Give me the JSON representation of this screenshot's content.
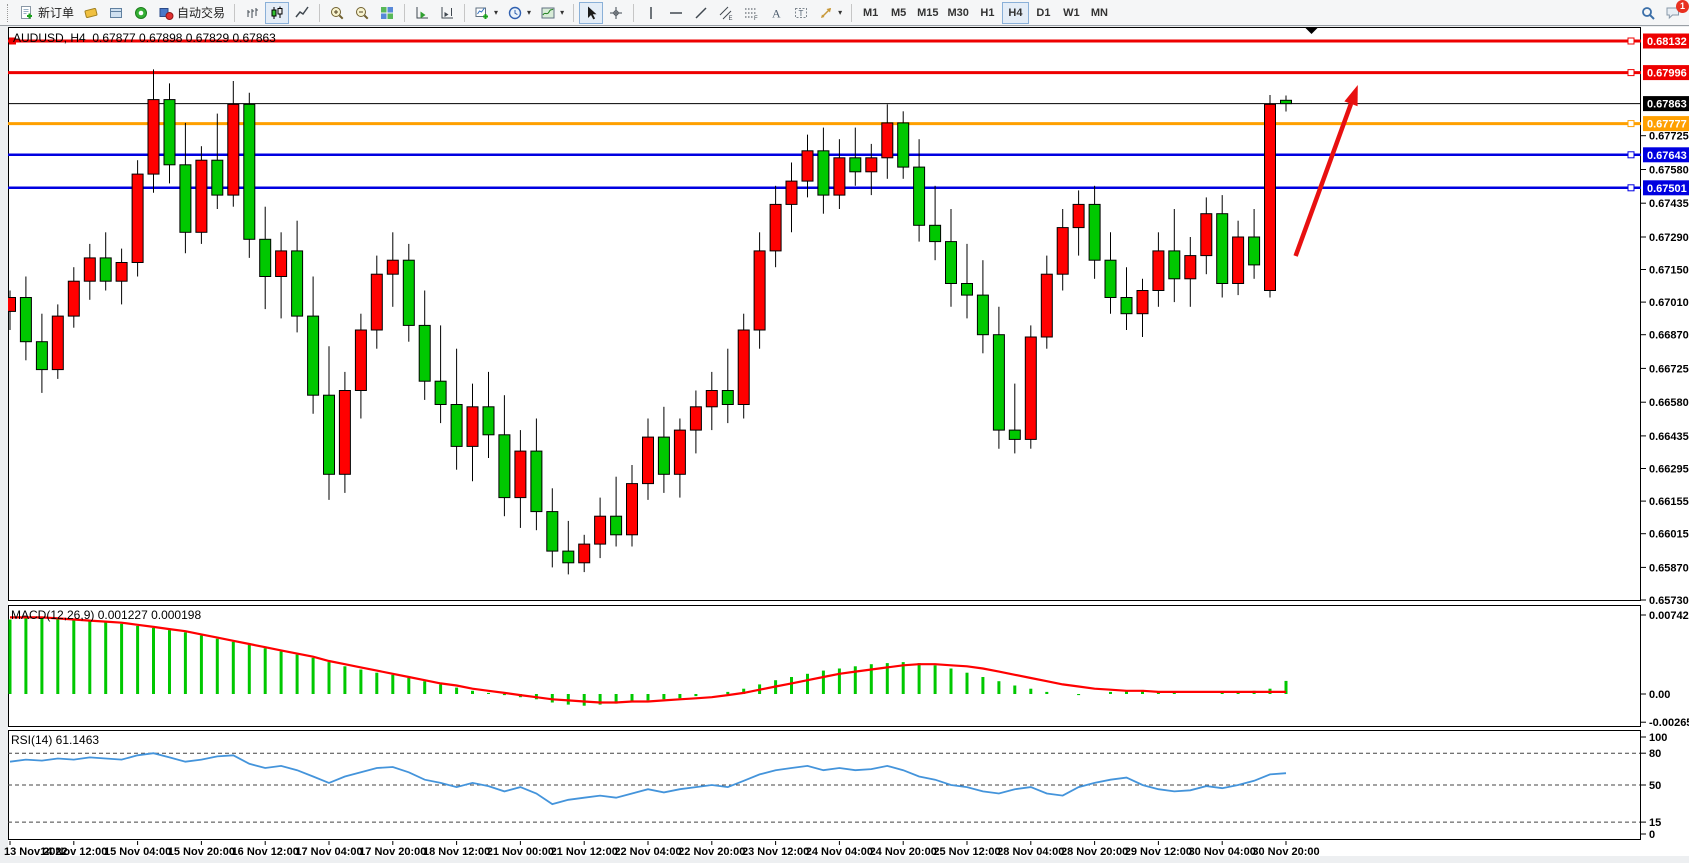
{
  "toolbar": {
    "groups": [
      {
        "buttons": [
          {
            "name": "new-order",
            "icon": "new-order-icon",
            "label": "新订单"
          },
          {
            "name": "quotes",
            "icon": "quotes-icon"
          },
          {
            "name": "data-window",
            "icon": "data-window-icon"
          },
          {
            "name": "navigator",
            "icon": "navigator-icon"
          },
          {
            "name": "auto-trading",
            "icon": "auto-trading-icon",
            "label": "自动交易"
          }
        ]
      },
      {
        "buttons": [
          {
            "name": "bar-chart",
            "icon": "bar-chart-icon"
          },
          {
            "name": "candle-chart",
            "icon": "candle-chart-icon",
            "active": true
          },
          {
            "name": "line-chart",
            "icon": "line-chart-icon"
          }
        ]
      },
      {
        "buttons": [
          {
            "name": "zoom-in",
            "icon": "zoom-in-icon"
          },
          {
            "name": "zoom-out",
            "icon": "zoom-out-icon"
          },
          {
            "name": "tile-windows",
            "icon": "tile-windows-icon"
          }
        ]
      },
      {
        "buttons": [
          {
            "name": "auto-scroll",
            "icon": "auto-scroll-icon"
          },
          {
            "name": "chart-shift",
            "icon": "chart-shift-icon"
          }
        ]
      },
      {
        "buttons": [
          {
            "name": "new-chart",
            "icon": "new-chart-icon",
            "caret": true
          },
          {
            "name": "periods",
            "icon": "period-icon",
            "caret": true
          },
          {
            "name": "templates",
            "icon": "template-icon",
            "caret": true
          }
        ]
      },
      {
        "buttons": [
          {
            "name": "cursor",
            "icon": "cursor-icon",
            "active": true
          },
          {
            "name": "crosshair",
            "icon": "crosshair-icon"
          }
        ]
      },
      {
        "buttons": [
          {
            "name": "vertical-line",
            "icon": "vline-icon"
          },
          {
            "name": "horizontal-line",
            "icon": "hline-icon"
          },
          {
            "name": "trendline",
            "icon": "trendline-icon"
          },
          {
            "name": "equidistant-channel",
            "icon": "channel-icon"
          },
          {
            "name": "fibonacci",
            "icon": "fibo-icon"
          },
          {
            "name": "text",
            "icon": "text-icon"
          },
          {
            "name": "text-label",
            "icon": "label-icon"
          },
          {
            "name": "arrows",
            "icon": "arrows-icon",
            "caret": true
          }
        ]
      }
    ],
    "timeframes": [
      {
        "label": "M1"
      },
      {
        "label": "M5"
      },
      {
        "label": "M15"
      },
      {
        "label": "M30"
      },
      {
        "label": "H1"
      },
      {
        "label": "H4",
        "active": true
      },
      {
        "label": "D1"
      },
      {
        "label": "W1"
      },
      {
        "label": "MN"
      }
    ],
    "right_icons": [
      {
        "name": "search",
        "icon": "search-icon"
      },
      {
        "name": "notifications",
        "icon": "chat-icon",
        "badge": "1"
      }
    ]
  },
  "chart": {
    "title": "AUDUSD, H4  0.67877 0.67898 0.67829 0.67863",
    "symbol": "AUDUSD",
    "period": "H4",
    "open": "0.67877",
    "high": "0.67898",
    "low": "0.67829",
    "close": "0.67863"
  },
  "chart_data": {
    "type": "candlestick",
    "symbol": "AUDUSD",
    "timeframe": "H4",
    "up_color": "#ff0000",
    "down_color": "#00c800",
    "x_labels": [
      "13 Nov 2022",
      "14 Nov 12:00",
      "15 Nov 04:00",
      "15 Nov 20:00",
      "16 Nov 12:00",
      "17 Nov 04:00",
      "17 Nov 20:00",
      "18 Nov 12:00",
      "21 Nov 00:00",
      "21 Nov 12:00",
      "22 Nov 04:00",
      "22 Nov 20:00",
      "23 Nov 12:00",
      "24 Nov 04:00",
      "24 Nov 20:00",
      "25 Nov 12:00",
      "28 Nov 04:00",
      "28 Nov 20:00",
      "29 Nov 12:00",
      "30 Nov 04:00",
      "30 Nov 20:00"
    ],
    "bars_per_label": 4,
    "candles": [
      [
        0.6697,
        0.6706,
        0.6689,
        0.6703
      ],
      [
        0.6703,
        0.6712,
        0.6676,
        0.6684
      ],
      [
        0.6684,
        0.6696,
        0.6662,
        0.6672
      ],
      [
        0.6672,
        0.67,
        0.6668,
        0.6695
      ],
      [
        0.6695,
        0.6716,
        0.669,
        0.671
      ],
      [
        0.671,
        0.6726,
        0.6702,
        0.672
      ],
      [
        0.672,
        0.6731,
        0.6706,
        0.671
      ],
      [
        0.671,
        0.6724,
        0.67,
        0.6718
      ],
      [
        0.6718,
        0.6762,
        0.6712,
        0.6756
      ],
      [
        0.6756,
        0.6801,
        0.6748,
        0.6788
      ],
      [
        0.6788,
        0.6795,
        0.6752,
        0.676
      ],
      [
        0.676,
        0.6778,
        0.6722,
        0.6731
      ],
      [
        0.6731,
        0.6768,
        0.6726,
        0.6762
      ],
      [
        0.6762,
        0.6782,
        0.6741,
        0.6747
      ],
      [
        0.6747,
        0.6796,
        0.6742,
        0.6786
      ],
      [
        0.6786,
        0.6791,
        0.672,
        0.6728
      ],
      [
        0.6728,
        0.6742,
        0.6698,
        0.6712
      ],
      [
        0.6712,
        0.6731,
        0.6694,
        0.6723
      ],
      [
        0.6723,
        0.6736,
        0.6688,
        0.6695
      ],
      [
        0.6695,
        0.6712,
        0.6653,
        0.6661
      ],
      [
        0.6661,
        0.6682,
        0.6616,
        0.6627
      ],
      [
        0.6627,
        0.6671,
        0.6619,
        0.6663
      ],
      [
        0.6663,
        0.6696,
        0.6651,
        0.6689
      ],
      [
        0.6689,
        0.6721,
        0.6681,
        0.6713
      ],
      [
        0.6713,
        0.6731,
        0.6699,
        0.6719
      ],
      [
        0.6719,
        0.6726,
        0.6684,
        0.6691
      ],
      [
        0.6691,
        0.6706,
        0.6659,
        0.6667
      ],
      [
        0.6667,
        0.6691,
        0.6649,
        0.6657
      ],
      [
        0.6657,
        0.6681,
        0.6629,
        0.6639
      ],
      [
        0.6639,
        0.6666,
        0.6624,
        0.6656
      ],
      [
        0.6656,
        0.6671,
        0.6634,
        0.6644
      ],
      [
        0.6644,
        0.6661,
        0.6609,
        0.6617
      ],
      [
        0.6617,
        0.6646,
        0.6604,
        0.6637
      ],
      [
        0.6637,
        0.6651,
        0.6603,
        0.6611
      ],
      [
        0.6611,
        0.6621,
        0.6587,
        0.6594
      ],
      [
        0.6594,
        0.6607,
        0.6584,
        0.6589
      ],
      [
        0.6589,
        0.6601,
        0.6585,
        0.6597
      ],
      [
        0.6597,
        0.6617,
        0.6591,
        0.6609
      ],
      [
        0.6609,
        0.6626,
        0.6596,
        0.6601
      ],
      [
        0.6601,
        0.6631,
        0.6596,
        0.6623
      ],
      [
        0.6623,
        0.6651,
        0.6616,
        0.6643
      ],
      [
        0.6643,
        0.6656,
        0.6619,
        0.6627
      ],
      [
        0.6627,
        0.6651,
        0.6617,
        0.6646
      ],
      [
        0.6646,
        0.6663,
        0.6636,
        0.6656
      ],
      [
        0.6656,
        0.6671,
        0.6646,
        0.6663
      ],
      [
        0.6663,
        0.6681,
        0.6649,
        0.6657
      ],
      [
        0.6657,
        0.6696,
        0.6651,
        0.6689
      ],
      [
        0.6689,
        0.6731,
        0.6681,
        0.6723
      ],
      [
        0.6723,
        0.6751,
        0.6716,
        0.6743
      ],
      [
        0.6743,
        0.6761,
        0.6731,
        0.6753
      ],
      [
        0.6753,
        0.6773,
        0.6746,
        0.6766
      ],
      [
        0.6766,
        0.6776,
        0.6739,
        0.6747
      ],
      [
        0.6747,
        0.6771,
        0.6741,
        0.6763
      ],
      [
        0.6763,
        0.6776,
        0.6751,
        0.6757
      ],
      [
        0.6757,
        0.6769,
        0.6747,
        0.6763
      ],
      [
        0.6763,
        0.6786,
        0.6754,
        0.6778
      ],
      [
        0.6778,
        0.6783,
        0.6754,
        0.6759
      ],
      [
        0.6759,
        0.6771,
        0.6727,
        0.6734
      ],
      [
        0.6734,
        0.6751,
        0.6719,
        0.6727
      ],
      [
        0.6727,
        0.6741,
        0.6699,
        0.6709
      ],
      [
        0.6709,
        0.6726,
        0.6694,
        0.6704
      ],
      [
        0.6704,
        0.6719,
        0.6679,
        0.6687
      ],
      [
        0.6687,
        0.6699,
        0.6638,
        0.6646
      ],
      [
        0.6646,
        0.6666,
        0.6636,
        0.6642
      ],
      [
        0.6642,
        0.6691,
        0.6638,
        0.6686
      ],
      [
        0.6686,
        0.6721,
        0.6681,
        0.6713
      ],
      [
        0.6713,
        0.6741,
        0.6706,
        0.6733
      ],
      [
        0.6733,
        0.6749,
        0.6721,
        0.6743
      ],
      [
        0.6743,
        0.6751,
        0.6711,
        0.6719
      ],
      [
        0.6719,
        0.6731,
        0.6696,
        0.6703
      ],
      [
        0.6703,
        0.6716,
        0.6689,
        0.6696
      ],
      [
        0.6696,
        0.6711,
        0.6686,
        0.6706
      ],
      [
        0.6706,
        0.6731,
        0.6699,
        0.6723
      ],
      [
        0.6723,
        0.6741,
        0.6701,
        0.6711
      ],
      [
        0.6711,
        0.6729,
        0.6699,
        0.6721
      ],
      [
        0.6721,
        0.6746,
        0.6713,
        0.6739
      ],
      [
        0.6739,
        0.6747,
        0.6703,
        0.6709
      ],
      [
        0.6709,
        0.6736,
        0.6704,
        0.6729
      ],
      [
        0.6729,
        0.6741,
        0.6711,
        0.6717
      ],
      [
        0.6706,
        0.679,
        0.6703,
        0.6786
      ],
      [
        0.67877,
        0.67898,
        0.67829,
        0.67863
      ]
    ],
    "price_axis": {
      "ticks": [
        "0.67725",
        "0.67580",
        "0.67435",
        "0.67290",
        "0.67150",
        "0.67010",
        "0.66870",
        "0.66725",
        "0.66580",
        "0.66435",
        "0.66295",
        "0.66155",
        "0.66015",
        "0.65870",
        "0.65730"
      ],
      "badges": [
        {
          "price": 0.68132,
          "label": "0.68132",
          "color": "#ee0000"
        },
        {
          "price": 0.67996,
          "label": "0.67996",
          "color": "#ee0000"
        },
        {
          "price": 0.67863,
          "label": "0.67863",
          "color": "#000000"
        },
        {
          "price": 0.67777,
          "label": "0.67777",
          "color": "#ffa000"
        },
        {
          "price": 0.67643,
          "label": "0.67643",
          "color": "#0000e0"
        },
        {
          "price": 0.67501,
          "label": "0.67501",
          "color": "#0000e0"
        }
      ]
    },
    "levels": [
      {
        "price": 0.68132,
        "color": "#ee0000",
        "width": 3,
        "left_marker": true
      },
      {
        "price": 0.67996,
        "color": "#ee0000",
        "width": 3
      },
      {
        "price": 0.67777,
        "color": "#ffa000",
        "width": 3
      },
      {
        "price": 0.67643,
        "color": "#0000e0",
        "width": 2.5
      },
      {
        "price": 0.67501,
        "color": "#0000e0",
        "width": 2.5
      }
    ],
    "current_price": 0.67863,
    "indicators": {
      "macd": {
        "label": "MACD(12,26,9) 0.001227 0.000198",
        "params": "12,26,9",
        "hist_value": 0.001227,
        "signal_value": 0.000198,
        "hist_color": "#00c800",
        "signal_color": "#ff0000",
        "axis_ticks": [
          {
            "value": 0.007422,
            "label": "0.007422"
          },
          {
            "value": 0,
            "label": "0.00"
          },
          {
            "value": -0.002651,
            "label": "-0.002651"
          }
        ],
        "values": [
          0.007,
          0.0071,
          0.0072,
          0.0071,
          0.007,
          0.0069,
          0.0068,
          0.0066,
          0.0064,
          0.0062,
          0.006,
          0.0058,
          0.0055,
          0.0052,
          0.0049,
          0.0046,
          0.0043,
          0.004,
          0.0037,
          0.0034,
          0.003,
          0.0026,
          0.0023,
          0.002,
          0.0018,
          0.0015,
          0.0012,
          0.0009,
          0.0006,
          0.0003,
          0.0001,
          -0.0001,
          -0.0003,
          -0.0005,
          -0.0008,
          -0.001,
          -0.0011,
          -0.001,
          -0.0009,
          -0.0008,
          -0.0006,
          -0.0005,
          -0.0004,
          -0.0002,
          0.0,
          0.0002,
          0.0005,
          0.0009,
          0.0013,
          0.0016,
          0.0019,
          0.0022,
          0.0024,
          0.0026,
          0.0028,
          0.0029,
          0.003,
          0.0029,
          0.0027,
          0.0024,
          0.002,
          0.0016,
          0.0012,
          0.0008,
          0.0005,
          0.0002,
          0.0,
          -0.0001,
          0.0,
          0.0002,
          0.0003,
          0.0003,
          0.0002,
          0.0001,
          0.0,
          0.0,
          0.0001,
          0.0002,
          0.0003,
          0.0005,
          0.001227
        ],
        "signal": [
          0.0072,
          0.0072,
          0.0072,
          0.0071,
          0.007,
          0.0069,
          0.0068,
          0.0067,
          0.0065,
          0.0063,
          0.0061,
          0.0059,
          0.0056,
          0.0053,
          0.005,
          0.0047,
          0.0044,
          0.0041,
          0.0038,
          0.0035,
          0.0031,
          0.0028,
          0.0025,
          0.0022,
          0.0019,
          0.0016,
          0.0013,
          0.001,
          0.0008,
          0.0005,
          0.0003,
          0.0001,
          -0.0001,
          -0.0003,
          -0.0005,
          -0.0006,
          -0.0007,
          -0.0008,
          -0.0008,
          -0.0007,
          -0.0007,
          -0.0006,
          -0.0005,
          -0.0004,
          -0.0003,
          -0.0001,
          0.0001,
          0.0004,
          0.0007,
          0.001,
          0.0013,
          0.0016,
          0.0019,
          0.0021,
          0.0023,
          0.0025,
          0.0027,
          0.0028,
          0.0028,
          0.0027,
          0.0026,
          0.0024,
          0.0021,
          0.0018,
          0.0015,
          0.0012,
          0.0009,
          0.0007,
          0.0005,
          0.0004,
          0.0003,
          0.0003,
          0.0002,
          0.0002,
          0.0002,
          0.0002,
          0.0002,
          0.0002,
          0.0002,
          0.0002,
          0.000198
        ]
      },
      "rsi": {
        "label": "RSI(14) 61.1463",
        "period": 14,
        "value": 61.1463,
        "color": "#4494db",
        "level_lines": [
          80,
          50,
          15
        ],
        "axis_ticks": [
          {
            "value": 100,
            "label": "100"
          },
          {
            "value": 80,
            "label": "80"
          },
          {
            "value": 50,
            "label": "50"
          },
          {
            "value": 15,
            "label": "15"
          },
          {
            "value": 0,
            "label": "0"
          }
        ],
        "values": [
          72,
          74,
          73,
          75,
          74,
          76,
          75,
          74,
          78,
          80,
          76,
          72,
          74,
          77,
          78,
          70,
          66,
          68,
          64,
          58,
          52,
          58,
          62,
          66,
          67,
          62,
          55,
          52,
          48,
          52,
          49,
          44,
          48,
          42,
          32,
          36,
          38,
          40,
          38,
          42,
          46,
          43,
          46,
          48,
          50,
          48,
          54,
          60,
          64,
          66,
          68,
          64,
          66,
          64,
          65,
          68,
          64,
          58,
          55,
          50,
          48,
          44,
          42,
          46,
          48,
          42,
          40,
          48,
          52,
          55,
          57,
          50,
          46,
          44,
          45,
          49,
          47,
          50,
          54,
          60,
          61.15
        ]
      }
    },
    "annotations": [
      {
        "type": "arrow",
        "color": "#e81010",
        "from": {
          "bar": 80.6,
          "price": 0.67208
        },
        "to": {
          "bar": 84.5,
          "price": 0.67943
        }
      }
    ]
  }
}
